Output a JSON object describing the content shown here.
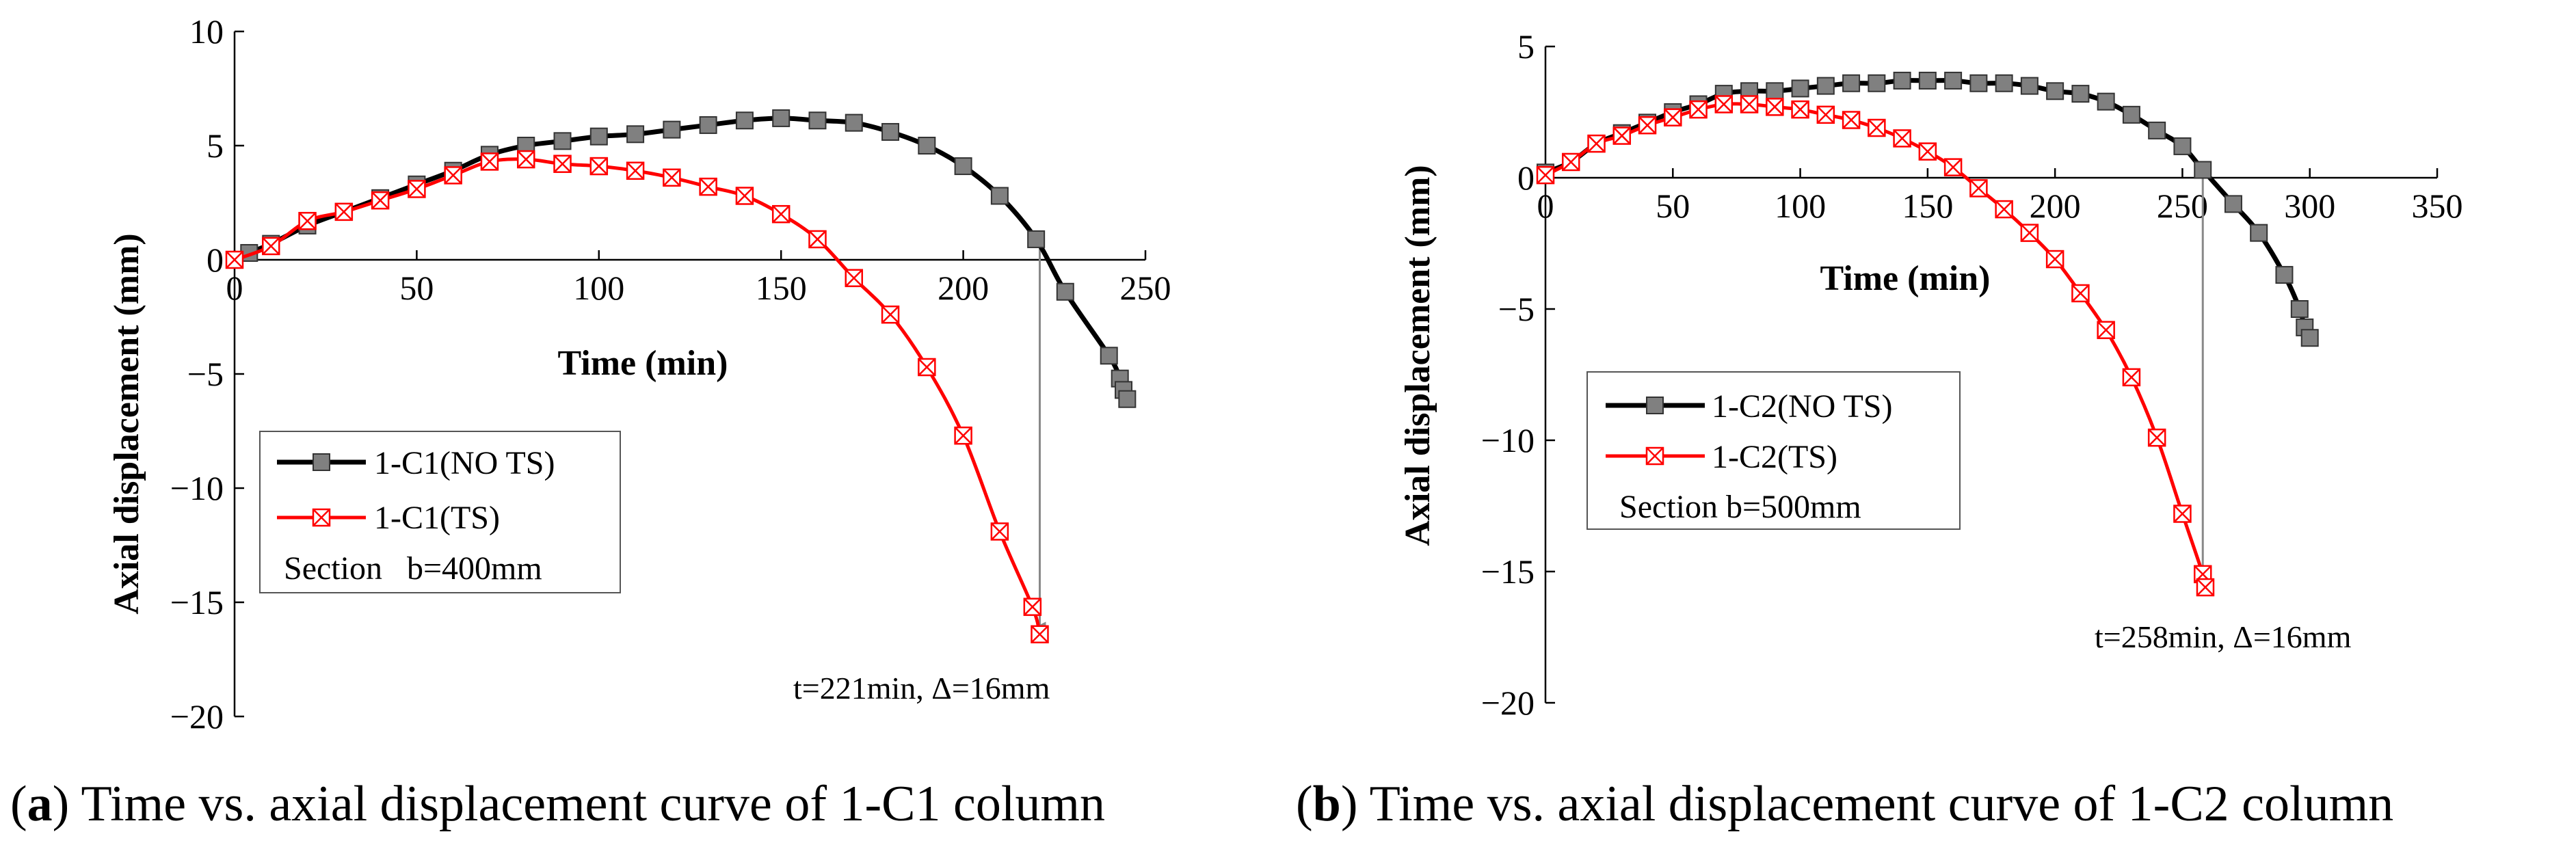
{
  "chart_data": [
    {
      "type": "line",
      "caption_tag": "a",
      "caption": "Time vs. axial displacement curve of 1-C1 column",
      "xlabel": "Time (min)",
      "ylabel": "Axial displacement (mm)",
      "xlim": [
        0,
        250
      ],
      "ylim": [
        -20,
        10
      ],
      "xticks": [
        0,
        50,
        100,
        150,
        200,
        250
      ],
      "yticks": [
        10,
        5,
        0,
        -5,
        -10,
        -15,
        -20
      ],
      "series": [
        {
          "name": "1-C1(NO TS)",
          "color": "#000000",
          "marker": "square-gray",
          "x": [
            0,
            4,
            10,
            20,
            30,
            40,
            50,
            60,
            70,
            80,
            90,
            100,
            110,
            120,
            130,
            140,
            150,
            160,
            170,
            180,
            190,
            200,
            210,
            220,
            228,
            240,
            243,
            244,
            245
          ],
          "y": [
            0,
            0.3,
            0.7,
            1.5,
            2.1,
            2.7,
            3.3,
            3.9,
            4.6,
            5.0,
            5.2,
            5.4,
            5.5,
            5.7,
            5.9,
            6.1,
            6.2,
            6.1,
            6.0,
            5.6,
            5.0,
            4.1,
            2.8,
            0.9,
            -1.4,
            -4.2,
            -5.2,
            -5.7,
            -6.1
          ]
        },
        {
          "name": "1-C1(TS)",
          "color": "#ff0000",
          "marker": "x-square",
          "x": [
            0,
            10,
            20,
            30,
            40,
            50,
            60,
            70,
            80,
            90,
            100,
            110,
            120,
            130,
            140,
            150,
            160,
            170,
            180,
            190,
            200,
            210,
            219,
            221
          ],
          "y": [
            0,
            0.6,
            1.7,
            2.1,
            2.6,
            3.1,
            3.7,
            4.3,
            4.4,
            4.2,
            4.1,
            3.9,
            3.6,
            3.2,
            2.8,
            2.0,
            0.9,
            -0.8,
            -2.4,
            -4.7,
            -7.7,
            -11.9,
            -15.2,
            -16.4
          ]
        }
      ],
      "legend_note": "Section   b=400mm",
      "annotation": {
        "text": "t=221min, Δ=16mm",
        "x": 221,
        "y_from": 1,
        "y_to": -16
      }
    },
    {
      "type": "line",
      "caption_tag": "b",
      "caption": "Time vs. axial displacement curve of 1-C2 column",
      "xlabel": "Time (min)",
      "ylabel": "Axial displacement (mm)",
      "xlim": [
        0,
        350
      ],
      "ylim": [
        -20,
        5
      ],
      "xticks": [
        0,
        50,
        100,
        150,
        200,
        250,
        300,
        350
      ],
      "yticks": [
        5,
        0,
        -5,
        -10,
        -15,
        -20
      ],
      "series": [
        {
          "name": "1-C2(NO TS)",
          "color": "#000000",
          "marker": "square-gray",
          "x": [
            0,
            10,
            20,
            30,
            40,
            50,
            60,
            70,
            80,
            90,
            100,
            110,
            120,
            130,
            140,
            150,
            160,
            170,
            180,
            190,
            200,
            210,
            220,
            230,
            240,
            250,
            258,
            270,
            280,
            290,
            296,
            298,
            300
          ],
          "y": [
            0.2,
            0.6,
            1.3,
            1.7,
            2.1,
            2.5,
            2.8,
            3.2,
            3.3,
            3.3,
            3.4,
            3.5,
            3.6,
            3.6,
            3.7,
            3.7,
            3.7,
            3.6,
            3.6,
            3.5,
            3.3,
            3.2,
            2.9,
            2.4,
            1.8,
            1.2,
            0.3,
            -1.0,
            -2.1,
            -3.7,
            -5.0,
            -5.7,
            -6.1
          ]
        },
        {
          "name": "1-C2(TS)",
          "color": "#ff0000",
          "marker": "x-square",
          "x": [
            0,
            10,
            20,
            30,
            40,
            50,
            60,
            70,
            80,
            90,
            100,
            110,
            120,
            130,
            140,
            150,
            160,
            170,
            180,
            190,
            200,
            210,
            220,
            230,
            240,
            250,
            258,
            259
          ],
          "y": [
            0.1,
            0.6,
            1.3,
            1.6,
            2.0,
            2.3,
            2.6,
            2.8,
            2.8,
            2.7,
            2.6,
            2.4,
            2.2,
            1.9,
            1.5,
            1.0,
            0.4,
            -0.4,
            -1.2,
            -2.1,
            -3.1,
            -4.4,
            -5.8,
            -7.6,
            -9.9,
            -12.8,
            -15.1,
            -15.6
          ]
        }
      ],
      "legend_note": "Section b=500mm",
      "annotation": {
        "text": "t=258min, Δ=16mm",
        "x": 258,
        "y_from": 0.3,
        "y_to": -15.2
      }
    }
  ]
}
